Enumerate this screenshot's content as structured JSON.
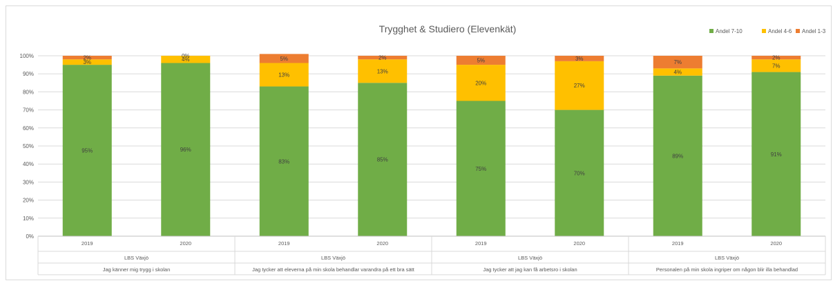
{
  "chart_data": {
    "type": "bar",
    "stacked": true,
    "title": "Trygghet & Studiero (Elevenkät)",
    "legend_position": "top-right",
    "grid": true,
    "ylim": [
      0,
      100
    ],
    "y_ticks": [
      "0%",
      "10%",
      "20%",
      "30%",
      "40%",
      "50%",
      "60%",
      "70%",
      "80%",
      "90%",
      "100%"
    ],
    "categories": [
      "2019",
      "2020",
      "2019",
      "2020",
      "2019",
      "2020",
      "2019",
      "2020"
    ],
    "groups": [
      {
        "school": "LBS Växjö",
        "question": "Jag känner mig trygg i skolan"
      },
      {
        "school": "LBS Växjö",
        "question": "Jag tycker att eleverna på min skola behandlar varandra på ett bra sätt"
      },
      {
        "school": "LBS Växjö",
        "question": "Jag tycker att jag kan få arbetsro i skolan"
      },
      {
        "school": "LBS Växjö",
        "question": "Personalen på min skola ingriper om någon blir illa behandlad"
      }
    ],
    "series": [
      {
        "name": "Andel 7-10",
        "color": "#70ad47",
        "values": [
          95,
          96,
          83,
          85,
          75,
          70,
          89,
          91
        ],
        "labels": [
          "95%",
          "96%",
          "83%",
          "85%",
          "75%",
          "70%",
          "89%",
          "91%"
        ]
      },
      {
        "name": "Andel 4-6",
        "color": "#ffc000",
        "values": [
          3,
          4,
          13,
          13,
          20,
          27,
          4,
          7
        ],
        "labels": [
          "3%",
          "4%",
          "13%",
          "13%",
          "20%",
          "27%",
          "4%",
          "7%"
        ]
      },
      {
        "name": "Andel 1-3",
        "color": "#ed7d31",
        "values": [
          2,
          0,
          5,
          2,
          5,
          3,
          7,
          2
        ],
        "labels": [
          "2%",
          "0%",
          "5%",
          "2%",
          "5%",
          "3%",
          "7%",
          "2%"
        ]
      }
    ]
  }
}
